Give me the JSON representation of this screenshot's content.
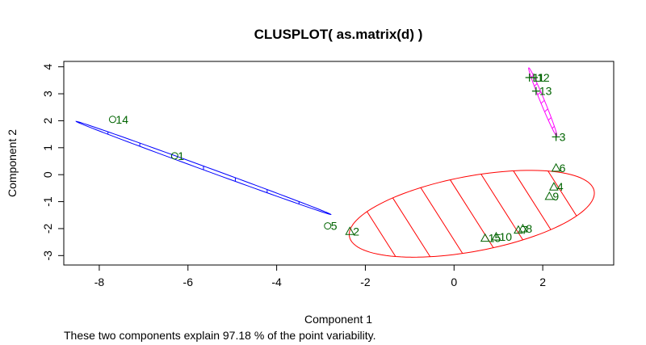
{
  "chart_data": {
    "type": "scatter",
    "title": "CLUSPLOT( as.matrix(d) )",
    "xlabel": "Component 1",
    "ylabel": "Component 2",
    "subtitle": "These two components explain 97.18 % of the point variability.",
    "xlim": [
      -8.8,
      3.6
    ],
    "ylim": [
      -3.35,
      4.2
    ],
    "xticks": [
      -8,
      -6,
      -4,
      -2,
      0,
      2
    ],
    "yticks": [
      -3,
      -2,
      -1,
      0,
      1,
      2,
      3,
      4
    ],
    "grid": false,
    "legend": "none",
    "colors": {
      "blue_ellipse": "#0000ff",
      "red_ellipse": "#ff0000",
      "magenta_ellipse": "#ff00ff",
      "points": "#006400",
      "labels": "#006400",
      "axis": "#000000"
    },
    "clusters": [
      {
        "id": 1,
        "marker": "circle",
        "color": "#0000ff",
        "ellipse": {
          "center": [
            -5.65,
            0.25
          ],
          "semi_major": 3.35,
          "semi_minor": 0.06,
          "angle_deg": -31
        },
        "points": [
          {
            "label": "14",
            "x": -7.7,
            "y": 2.05
          },
          {
            "label": "1",
            "x": -6.3,
            "y": 0.7
          },
          {
            "label": "5",
            "x": -2.85,
            "y": -1.9
          }
        ]
      },
      {
        "id": 2,
        "marker": "triangle",
        "color": "#ff0000",
        "ellipse": {
          "center": [
            0.4,
            -1.45
          ],
          "semi_major": 2.9,
          "semi_minor": 1.35,
          "angle_deg": 20
        },
        "points": [
          {
            "label": "2",
            "x": -2.35,
            "y": -2.1
          },
          {
            "label": "6",
            "x": 2.3,
            "y": 0.25
          },
          {
            "label": "4",
            "x": 2.25,
            "y": -0.45
          },
          {
            "label": "9",
            "x": 2.15,
            "y": -0.8
          },
          {
            "label": "7",
            "x": 1.45,
            "y": -2.05
          },
          {
            "label": "8",
            "x": 1.55,
            "y": -2.0
          },
          {
            "label": "15",
            "x": 0.7,
            "y": -2.35
          },
          {
            "label": "10",
            "x": 0.95,
            "y": -2.3
          }
        ]
      },
      {
        "id": 3,
        "marker": "plus",
        "color": "#ff00ff",
        "ellipse": {
          "center": [
            2.0,
            2.7
          ],
          "semi_major": 1.3,
          "semi_minor": 0.05,
          "angle_deg": -76
        },
        "points": [
          {
            "label": "11",
            "x": 1.7,
            "y": 3.6
          },
          {
            "label": "12",
            "x": 1.8,
            "y": 3.6
          },
          {
            "label": "13",
            "x": 1.85,
            "y": 3.1
          },
          {
            "label": "3",
            "x": 2.3,
            "y": 1.4
          }
        ]
      }
    ]
  }
}
